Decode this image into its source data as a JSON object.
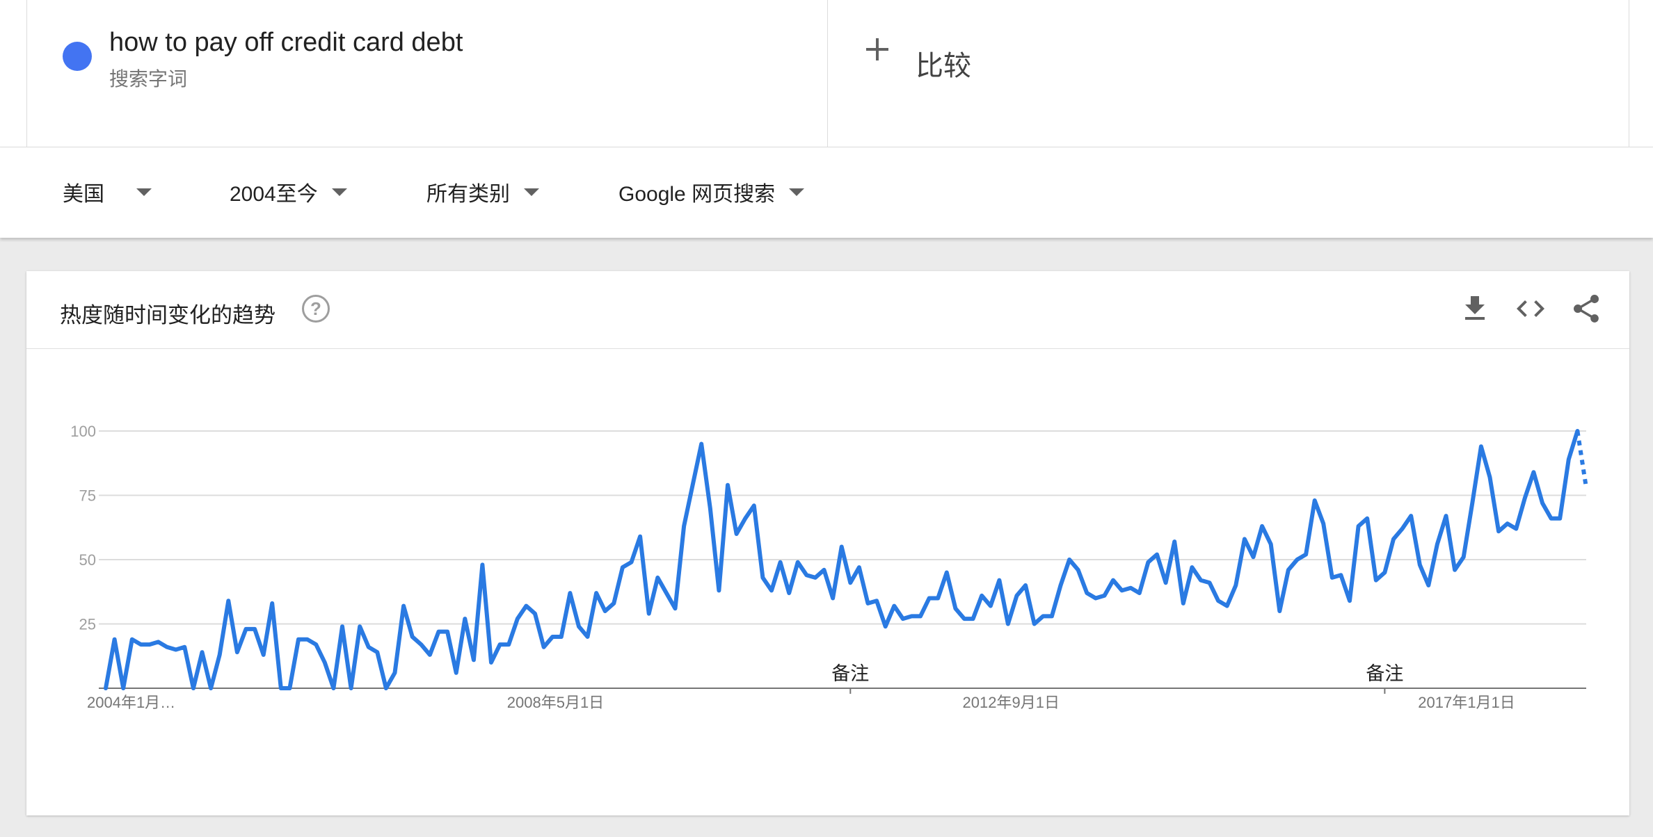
{
  "search_term": {
    "name": "how to pay off credit card debt",
    "type": "搜索字词",
    "color": "#4374f2"
  },
  "compare": {
    "label": "比较",
    "icon": "plus-icon"
  },
  "filters": [
    {
      "label": "美国",
      "icon": "caret-down-icon"
    },
    {
      "label": "2004至今",
      "icon": "caret-down-icon"
    },
    {
      "label": "所有类别",
      "icon": "caret-down-icon"
    },
    {
      "label": "Google 网页搜索",
      "icon": "caret-down-icon"
    }
  ],
  "card": {
    "title": "热度随时间变化的趋势",
    "help_icon": "?",
    "actions": [
      "download-icon",
      "embed-icon",
      "share-icon"
    ]
  },
  "chart_data": {
    "type": "line",
    "x_start": "2004-01",
    "x_interval": "month",
    "x_ticks": [
      {
        "label": "2004年1月…",
        "date": "2004-01"
      },
      {
        "label": "2008年5月1日",
        "date": "2008-05"
      },
      {
        "label": "2012年9月1日",
        "date": "2012-09"
      },
      {
        "label": "2017年1月1日",
        "date": "2017-01"
      }
    ],
    "y_ticks": [
      25,
      50,
      75,
      100
    ],
    "ylim": [
      0,
      100
    ],
    "grid": true,
    "series_color": "#2a7ae2",
    "partial_last_point": true,
    "annotations": [
      {
        "label": "备注",
        "date": "2011-02"
      },
      {
        "label": "备注",
        "date": "2016-03"
      }
    ],
    "series": [
      {
        "values": [
          0,
          19,
          0,
          19,
          17,
          17,
          18,
          16,
          15,
          16,
          0,
          14,
          0,
          13,
          34,
          14,
          23,
          23,
          13,
          33,
          0,
          0,
          19,
          19,
          17,
          10,
          0,
          24,
          0,
          24,
          16,
          14,
          0,
          6,
          32,
          20,
          17,
          13,
          22,
          22,
          6,
          27,
          11,
          48,
          10,
          17,
          17,
          27,
          32,
          29,
          16,
          20,
          20,
          37,
          24,
          20,
          37,
          30,
          33,
          47,
          49,
          59,
          29,
          43,
          37,
          31,
          63,
          79,
          95,
          70,
          38,
          79,
          60,
          66,
          71,
          43,
          38,
          49,
          37,
          49,
          44,
          43,
          46,
          35,
          55,
          41,
          47,
          33,
          34,
          24,
          32,
          27,
          28,
          28,
          35,
          35,
          45,
          31,
          27,
          27,
          36,
          32,
          42,
          25,
          36,
          40,
          25,
          28,
          28,
          40,
          50,
          46,
          37,
          35,
          36,
          42,
          38,
          39,
          37,
          49,
          52,
          41,
          57,
          33,
          47,
          42,
          41,
          34,
          32,
          40,
          58,
          51,
          63,
          56,
          30,
          46,
          50,
          52,
          73,
          64,
          43,
          44,
          34,
          63,
          66,
          42,
          45,
          58,
          62,
          67,
          48,
          40,
          56,
          67,
          46,
          51,
          72,
          94,
          82,
          61,
          64,
          62,
          74,
          84,
          72,
          66,
          66,
          89,
          100,
          78
        ]
      }
    ]
  }
}
